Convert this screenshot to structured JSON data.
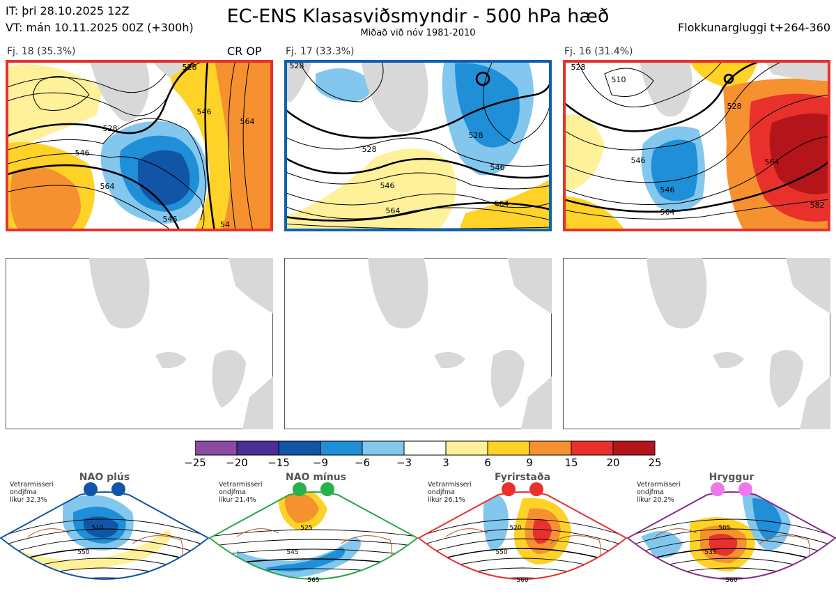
{
  "header": {
    "it": "IT: þri 28.10.2025 12Z",
    "vt": "VT: mán 10.11.2025 00Z  (+300h)",
    "title": "EC-ENS Klasasviðsmyndir - 500 hPa hæð",
    "subtitle": "Miðað við nóv 1981-2010",
    "window": "Flokkunargluggi t+264-360"
  },
  "clusters": [
    {
      "label": "Fj. 18 (35.3%)",
      "extra": "CR OP",
      "border": "#e8312d",
      "contours": [
        "528",
        "546",
        "528",
        "546",
        "564",
        "546",
        "564",
        "54"
      ]
    },
    {
      "label": "Fj. 17 (33.3%)",
      "extra": "",
      "border": "#1060b0",
      "contours": [
        "528",
        "528",
        "528",
        "546",
        "546",
        "564",
        "564"
      ]
    },
    {
      "label": "Fj. 16 (31.4%)",
      "extra": "",
      "border": "#e8312d",
      "contours": [
        "528",
        "510",
        "528",
        "546",
        "546",
        "564",
        "564",
        "582"
      ]
    }
  ],
  "colorbar": {
    "ticks": [
      "−25",
      "−20",
      "−15",
      "−9",
      "−6",
      "−3",
      "3",
      "6",
      "9",
      "15",
      "20",
      "25"
    ],
    "colors": [
      "#8e4aa0",
      "#4a2f96",
      "#1156a6",
      "#1f8fd8",
      "#83c7ee",
      "#ffffff",
      "#fff09a",
      "#fed227",
      "#f5912f",
      "#e8312d",
      "#b3151b"
    ]
  },
  "regimes": [
    {
      "name": "NAO plús",
      "note": "Vetrarmisseri\nondjfma\nlíkur 32,3%",
      "color": "#1156a6",
      "border": "#1156a6",
      "contours": [
        "510",
        "550"
      ]
    },
    {
      "name": "NAO mínus",
      "note": "Vetrarmisseri\nondjfma\nlíkur 21,4%",
      "color": "#28b04a",
      "border": "#28a745",
      "contours": [
        "525",
        "545",
        "565"
      ]
    },
    {
      "name": "Fyrirstaða",
      "note": "Vetrarmisseri\nondjfma\nlíkur 26,1%",
      "color": "#e8312d",
      "border": "#e8312d",
      "contours": [
        "520",
        "550",
        "560"
      ]
    },
    {
      "name": "Hryggur",
      "note": "Vetrarmisseri\nondjfma\nlíkur 20,2%",
      "color": "#ec78ec",
      "border": "#8a2a8a",
      "contours": [
        "505",
        "535",
        "560"
      ]
    }
  ],
  "chart_data": {
    "type": "heatmap",
    "title": "EC-ENS Klasasviðsmyndir - 500 hPa hæð",
    "subtitle": "Miðað við nóv 1981-2010",
    "clusters": [
      {
        "name": "Fj. 18",
        "probability_pct": 35.3,
        "members_note": "CR OP"
      },
      {
        "name": "Fj. 17",
        "probability_pct": 33.3
      },
      {
        "name": "Fj. 16",
        "probability_pct": 31.4
      }
    ],
    "colorbar_levels": [
      -25,
      -20,
      -15,
      -9,
      -6,
      -3,
      3,
      6,
      9,
      15,
      20,
      25
    ],
    "climatological_regimes": [
      {
        "name": "NAO plús",
        "likelihood_pct": 32.3
      },
      {
        "name": "NAO mínus",
        "likelihood_pct": 21.4
      },
      {
        "name": "Fyrirstaða",
        "likelihood_pct": 26.1
      },
      {
        "name": "Hryggur",
        "likelihood_pct": 20.2
      }
    ]
  }
}
